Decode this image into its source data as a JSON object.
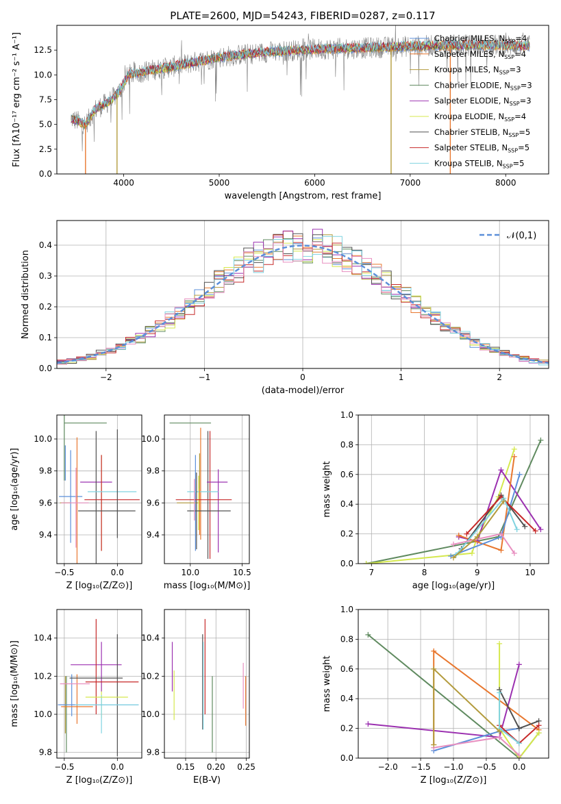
{
  "figure": {
    "title": "PLATE=2600, MJD=54243, FIBERID=0287, z=0.117"
  },
  "colors": {
    "Chabrier MILES": "#5b8fd9",
    "Salpeter MILES": "#e8772e",
    "Kroupa MILES": "#b39b3d",
    "Chabrier ELODIE": "#5f8a5f",
    "Salpeter ELODIE": "#9b30b0",
    "Kroupa ELODIE": "#d5e84d",
    "Chabrier STELIB": "#505050",
    "Salpeter STELIB": "#c62828",
    "Kroupa STELIB": "#7fd3e0",
    "pink": "#e88fc0",
    "data": "#7f7f7f"
  },
  "chart_data": [
    {
      "id": "spectrum",
      "type": "line",
      "xlabel": "wavelength [Angstrom, rest frame]",
      "ylabel": "Flux [fλ10⁻¹⁷ erg cm⁻² s⁻¹ A⁻¹]",
      "xlim": [
        3300,
        8450
      ],
      "ylim": [
        0,
        15
      ],
      "xticks": [
        4000,
        5000,
        6000,
        7000,
        8000
      ],
      "yticks": [
        0.0,
        2.5,
        5.0,
        7.5,
        10.0,
        12.5
      ],
      "ytick_labels": [
        "0.0",
        "2.5",
        "5.0",
        "7.5",
        "10.0",
        "12.5"
      ],
      "xrange_data": [
        3450,
        8250
      ],
      "continuum_points": [
        [
          3450,
          5.6
        ],
        [
          3600,
          5.0
        ],
        [
          3700,
          6.5
        ],
        [
          3850,
          7.3
        ],
        [
          3950,
          8.3
        ],
        [
          4050,
          10.0
        ],
        [
          4300,
          10.5
        ],
        [
          4500,
          10.8
        ],
        [
          5000,
          11.8
        ],
        [
          5500,
          12.3
        ],
        [
          6000,
          12.6
        ],
        [
          6500,
          12.7
        ],
        [
          7000,
          12.9
        ],
        [
          7500,
          13.0
        ],
        [
          8000,
          13.0
        ],
        [
          8250,
          12.9
        ]
      ],
      "spikes": [
        [
          3600,
          0
        ],
        [
          3930,
          0
        ],
        [
          6800,
          0
        ],
        [
          7420,
          0
        ]
      ],
      "legend": [
        {
          "name": "Chabrier MILES",
          "nssp": "4"
        },
        {
          "name": "Salpeter MILES",
          "nssp": "4"
        },
        {
          "name": "Kroupa MILES",
          "nssp": "3"
        },
        {
          "name": "Chabrier ELODIE",
          "nssp": "3"
        },
        {
          "name": "Salpeter ELODIE",
          "nssp": "3"
        },
        {
          "name": "Kroupa ELODIE",
          "nssp": "4"
        },
        {
          "name": "Chabrier STELIB",
          "nssp": "5"
        },
        {
          "name": "Salpeter STELIB",
          "nssp": "5"
        },
        {
          "name": "Kroupa STELIB",
          "nssp": "5"
        }
      ],
      "legend_suffix_label": "N",
      "legend_suffix_sub": "SSP",
      "legend_placement": "right"
    },
    {
      "id": "residuals",
      "type": "step-histogram",
      "xlabel": "(data-model)/error",
      "ylabel": "Normed distribution",
      "xlim": [
        -2.5,
        2.5
      ],
      "ylim": [
        0,
        0.48
      ],
      "xticks": [
        -2,
        -1,
        0,
        1,
        2
      ],
      "xtick_labels": [
        "−2",
        "−1",
        "0",
        "1",
        "2"
      ],
      "yticks": [
        0.0,
        0.1,
        0.2,
        0.3,
        0.4
      ],
      "ytick_labels": [
        "0.0",
        "0.1",
        "0.2",
        "0.3",
        "0.4"
      ],
      "bin_edges_start": -2.5,
      "bin_width": 0.1,
      "n_bins": 50,
      "reference_label": "𝒩(0,1)",
      "reference_color": "#5b8fd9"
    },
    {
      "id": "age-vs-Z",
      "type": "errorbar",
      "xlabel": "Z [log₁₀(Z/Z⊙)]",
      "ylabel": "age  [log₁₀(age/yr)]",
      "xlim": [
        -0.57,
        0.23
      ],
      "ylim": [
        9.22,
        10.15
      ],
      "xticks": [
        -0.5,
        0.0
      ],
      "xtick_labels": [
        "−0.5",
        "0.0"
      ],
      "yticks": [
        9.4,
        9.6,
        9.8,
        10.0
      ],
      "ytick_labels": [
        "9.4",
        "9.6",
        "9.8",
        "10.0"
      ],
      "points": [
        {
          "x": -0.44,
          "xerr": 0.11,
          "y": 9.64,
          "yerr": 0.29,
          "color": "#5b8fd9"
        },
        {
          "x": -0.38,
          "xerr": 0.0,
          "y": 9.6,
          "yerr": 0.41,
          "color": "#e8772e"
        },
        {
          "x": -0.49,
          "xerr": 0.05,
          "y": 9.6,
          "yerr": 0.0,
          "color": "#b39b3d"
        },
        {
          "x": -0.5,
          "xerr": 0.0,
          "y": 10.1,
          "yerr": 0.36,
          "color": "#5f8a5f"
        },
        {
          "x": -0.2,
          "xerr": 0.15,
          "y": 9.73,
          "yerr": 0.0,
          "color": "#9b30b0"
        },
        {
          "x": -0.15,
          "xerr": 0.0,
          "y": 9.6,
          "yerr": 0.3,
          "color": "#d5e84d"
        },
        {
          "x": -0.2,
          "xerr": 0.0,
          "y": 9.6,
          "yerr": 0.45,
          "color": "#505050"
        },
        {
          "x": -0.15,
          "xerr": 0.0,
          "y": 9.6,
          "yerr": 0.3,
          "color": "#c62828"
        },
        {
          "x": -0.05,
          "xerr": 0.23,
          "y": 9.67,
          "yerr": 0.0,
          "color": "#7fd3e0"
        },
        {
          "x": -0.39,
          "xerr": 0.0,
          "y": 9.57,
          "yerr": 0.25,
          "color": "#e88fc0"
        },
        {
          "x": -0.4,
          "xerr": 0.13,
          "y": 9.6,
          "yerr": 0.0,
          "color": "#e88fc0"
        },
        {
          "x": -0.05,
          "xerr": 0.26,
          "y": 9.62,
          "yerr": 0.0,
          "color": "#c62828"
        },
        {
          "x": 0.0,
          "xerr": 0.0,
          "y": 9.72,
          "yerr": 0.34,
          "color": "#505050"
        },
        {
          "x": -0.1,
          "xerr": 0.27,
          "y": 9.55,
          "yerr": 0.0,
          "color": "#505050"
        },
        {
          "x": -0.49,
          "xerr": 0.0,
          "y": 9.85,
          "yerr": 0.11,
          "color": "#5b8fd9"
        },
        {
          "x": -0.3,
          "xerr": 0.2,
          "y": 10.1,
          "yerr": 0.0,
          "color": "#5f8a5f"
        }
      ]
    },
    {
      "id": "age-vs-mass",
      "type": "errorbar",
      "xlabel": "mass [log₁₀(M/M⊙)]",
      "ylabel": "",
      "xlim": [
        9.75,
        10.57
      ],
      "ylim": [
        9.22,
        10.15
      ],
      "xticks": [
        10.0,
        10.5
      ],
      "xtick_labels": [
        "10.0",
        "10.5"
      ],
      "yticks": [
        9.4,
        9.6,
        9.8,
        10.0
      ],
      "ytick_labels": [
        "9.4",
        "9.6",
        "9.8",
        "10.0"
      ],
      "points": [
        {
          "x": 10.05,
          "xerr": 0.0,
          "y": 9.6,
          "yerr": 0.3,
          "color": "#5b8fd9"
        },
        {
          "x": 10.1,
          "xerr": 0.0,
          "y": 9.72,
          "yerr": 0.35,
          "color": "#e8772e"
        },
        {
          "x": 9.98,
          "xerr": 0.11,
          "y": 9.6,
          "yerr": 0.0,
          "color": "#b39b3d"
        },
        {
          "x": 10.0,
          "xerr": 0.2,
          "y": 10.1,
          "yerr": 0.0,
          "color": "#5f8a5f"
        },
        {
          "x": 10.27,
          "xerr": 0.0,
          "y": 9.55,
          "yerr": 0.26,
          "color": "#9b30b0"
        },
        {
          "x": 10.08,
          "xerr": 0.0,
          "y": 9.6,
          "yerr": 0.17,
          "color": "#d5e84d"
        },
        {
          "x": 10.17,
          "xerr": 0.0,
          "y": 9.65,
          "yerr": 0.4,
          "color": "#505050"
        },
        {
          "x": 10.19,
          "xerr": 0.0,
          "y": 9.65,
          "yerr": 0.4,
          "color": "#c62828"
        },
        {
          "x": 10.12,
          "xerr": 0.15,
          "y": 9.67,
          "yerr": 0.0,
          "color": "#7fd3e0"
        },
        {
          "x": 10.06,
          "xerr": 0.0,
          "y": 9.55,
          "yerr": 0.24,
          "color": "#505050"
        },
        {
          "x": 10.09,
          "xerr": 0.0,
          "y": 9.6,
          "yerr": 0.2,
          "color": "#e8772e"
        },
        {
          "x": 10.13,
          "xerr": 0.27,
          "y": 9.62,
          "yerr": 0.0,
          "color": "#c62828"
        },
        {
          "x": 10.18,
          "xerr": 0.21,
          "y": 9.55,
          "yerr": 0.0,
          "color": "#505050"
        },
        {
          "x": 10.26,
          "xerr": 0.1,
          "y": 9.73,
          "yerr": 0.0,
          "color": "#9b30b0"
        },
        {
          "x": 10.04,
          "xerr": 0.0,
          "y": 9.62,
          "yerr": 0.13,
          "color": "#e88fc0"
        },
        {
          "x": 10.09,
          "xerr": 0.0,
          "y": 9.8,
          "yerr": 0.11,
          "color": "#b39b3d"
        }
      ]
    },
    {
      "id": "weight-vs-age",
      "type": "line",
      "xlabel": "age  [log₁₀(age/yr)]",
      "ylabel": "mass weight",
      "xlim": [
        6.75,
        10.35
      ],
      "ylim": [
        0,
        1
      ],
      "xticks": [
        7,
        8,
        9,
        10
      ],
      "xtick_labels": [
        "7",
        "8",
        "9",
        "10"
      ],
      "yticks": [
        0.0,
        0.2,
        0.4,
        0.6,
        0.8,
        1.0
      ],
      "ytick_labels": [
        "0.0",
        "0.2",
        "0.4",
        "0.6",
        "0.8",
        "1.0"
      ],
      "series": [
        {
          "color": "#5f8a5f",
          "x": [
            6.9,
            9.4,
            10.2
          ],
          "y": [
            0.0,
            0.18,
            0.83
          ]
        },
        {
          "color": "#d5e84d",
          "x": [
            6.9,
            8.9,
            9.0,
            9.4,
            9.7
          ],
          "y": [
            0.0,
            0.07,
            0.18,
            0.45,
            0.77
          ]
        },
        {
          "color": "#9b30b0",
          "x": [
            8.65,
            9.0,
            9.45,
            10.2
          ],
          "y": [
            0.18,
            0.15,
            0.63,
            0.23
          ]
        },
        {
          "color": "#e8772e",
          "x": [
            8.65,
            9.45,
            9.7
          ],
          "y": [
            0.19,
            0.09,
            0.72
          ]
        },
        {
          "color": "#5b8fd9",
          "x": [
            8.5,
            9.45,
            9.8
          ],
          "y": [
            0.05,
            0.18,
            0.6
          ]
        },
        {
          "color": "#505050",
          "x": [
            8.7,
            9.45,
            9.9
          ],
          "y": [
            0.1,
            0.46,
            0.25
          ]
        },
        {
          "color": "#c62828",
          "x": [
            8.8,
            9.45,
            10.1
          ],
          "y": [
            0.2,
            0.45,
            0.22
          ]
        },
        {
          "color": "#7fd3e0",
          "x": [
            8.6,
            9.5,
            9.75
          ],
          "y": [
            0.06,
            0.44,
            0.23
          ]
        },
        {
          "color": "#e88fc0",
          "x": [
            8.55,
            9.45,
            9.7
          ],
          "y": [
            0.13,
            0.2,
            0.07
          ]
        },
        {
          "color": "#b39b3d",
          "x": [
            8.55,
            9.0,
            9.5
          ],
          "y": [
            0.04,
            0.18,
            0.42
          ]
        }
      ]
    },
    {
      "id": "mass-vs-Z",
      "type": "errorbar",
      "xlabel": "Z [log₁₀(Z/Z⊙)]",
      "ylabel": "mass [log₁₀(M/M⊙)]",
      "xlim": [
        -0.57,
        0.23
      ],
      "ylim": [
        9.77,
        10.55
      ],
      "xticks": [
        -0.5,
        0.0
      ],
      "xtick_labels": [
        "−0.5",
        "0.0"
      ],
      "yticks": [
        9.8,
        10.0,
        10.2,
        10.4
      ],
      "ytick_labels": [
        "9.8",
        "10.0",
        "10.2",
        "10.4"
      ],
      "points": [
        {
          "x": -0.43,
          "xerr": 0.0,
          "y": 10.1,
          "yerr": 0.11,
          "color": "#5b8fd9"
        },
        {
          "x": -0.38,
          "xerr": 0.0,
          "y": 10.08,
          "yerr": 0.13,
          "color": "#e8772e"
        },
        {
          "x": -0.49,
          "xerr": 0.0,
          "y": 10.05,
          "yerr": 0.15,
          "color": "#b39b3d"
        },
        {
          "x": -0.48,
          "xerr": 0.0,
          "y": 10.0,
          "yerr": 0.2,
          "color": "#5f8a5f"
        },
        {
          "x": -0.2,
          "xerr": 0.24,
          "y": 10.26,
          "yerr": 0.0,
          "color": "#9b30b0"
        },
        {
          "x": -0.15,
          "xerr": 0.0,
          "y": 10.08,
          "yerr": 0.1,
          "color": "#d5e84d"
        },
        {
          "x": 0.0,
          "xerr": 0.0,
          "y": 10.1,
          "yerr": 0.32,
          "color": "#505050"
        },
        {
          "x": -0.2,
          "xerr": 0.0,
          "y": 10.25,
          "yerr": 0.25,
          "color": "#c62828"
        },
        {
          "x": -0.15,
          "xerr": 0.0,
          "y": 10.0,
          "yerr": 0.1,
          "color": "#7fd3e0"
        },
        {
          "x": -0.4,
          "xerr": 0.14,
          "y": 10.16,
          "yerr": 0.0,
          "color": "#e88fc0"
        },
        {
          "x": -0.15,
          "xerr": 0.0,
          "y": 10.25,
          "yerr": 0.13,
          "color": "#9b30b0"
        },
        {
          "x": -0.1,
          "xerr": 0.2,
          "y": 10.09,
          "yerr": 0.0,
          "color": "#d5e84d"
        },
        {
          "x": -0.05,
          "xerr": 0.25,
          "y": 10.17,
          "yerr": 0.0,
          "color": "#c62828"
        },
        {
          "x": -0.2,
          "xerr": 0.25,
          "y": 10.19,
          "yerr": 0.0,
          "color": "#505050"
        },
        {
          "x": -0.18,
          "xerr": 0.38,
          "y": 10.05,
          "yerr": 0.0,
          "color": "#5b8fd9"
        },
        {
          "x": -0.38,
          "xerr": 0.15,
          "y": 10.04,
          "yerr": 0.0,
          "color": "#e8772e"
        },
        {
          "x": -0.1,
          "xerr": 0.3,
          "y": 10.05,
          "yerr": 0.0,
          "color": "#7fd3e0"
        }
      ]
    },
    {
      "id": "mass-vs-EBV",
      "type": "errorbar",
      "xlabel": "E(B-V)",
      "ylabel": "",
      "xlim": [
        0.115,
        0.255
      ],
      "ylim": [
        9.77,
        10.55
      ],
      "xticks": [
        0.15,
        0.2,
        0.25
      ],
      "xtick_labels": [
        "0.15",
        "0.20",
        "0.25"
      ],
      "yticks": [
        9.8,
        10.0,
        10.2,
        10.4
      ],
      "ytick_labels": [
        "9.8",
        "10.0",
        "10.2",
        "10.4"
      ],
      "points": [
        {
          "x": 0.128,
          "xerr": 0.0,
          "y": 10.25,
          "yerr": 0.13,
          "color": "#9b30b0"
        },
        {
          "x": 0.131,
          "xerr": 0.0,
          "y": 10.1,
          "yerr": 0.13,
          "color": "#d5e84d"
        },
        {
          "x": 0.178,
          "xerr": 0.0,
          "y": 10.17,
          "yerr": 0.25,
          "color": "#505050"
        },
        {
          "x": 0.179,
          "xerr": 0.0,
          "y": 10.15,
          "yerr": 0.23,
          "color": "#7fd3e0"
        },
        {
          "x": 0.182,
          "xerr": 0.0,
          "y": 10.25,
          "yerr": 0.25,
          "color": "#c62828"
        },
        {
          "x": 0.194,
          "xerr": 0.0,
          "y": 10.0,
          "yerr": 0.2,
          "color": "#5f8a5f"
        },
        {
          "x": 0.245,
          "xerr": 0.0,
          "y": 10.15,
          "yerr": 0.12,
          "color": "#e88fc0"
        },
        {
          "x": 0.249,
          "xerr": 0.0,
          "y": 10.07,
          "yerr": 0.13,
          "color": "#e8772e"
        }
      ]
    },
    {
      "id": "weight-vs-Z",
      "type": "line",
      "xlabel": "Z [log₁₀(Z/Z⊙)]",
      "ylabel": "mass weight",
      "xlim": [
        -2.45,
        0.45
      ],
      "ylim": [
        0,
        1
      ],
      "xticks": [
        -2.0,
        -1.5,
        -1.0,
        -0.5,
        0.0
      ],
      "xtick_labels": [
        "−2.0",
        "−1.5",
        "−1.0",
        "−0.5",
        "0.0"
      ],
      "yticks": [
        0.0,
        0.2,
        0.4,
        0.6,
        0.8,
        1.0
      ],
      "ytick_labels": [
        "0.0",
        "0.2",
        "0.4",
        "0.6",
        "0.8",
        "1.0"
      ],
      "series": [
        {
          "color": "#5f8a5f",
          "x": [
            -2.3,
            0.0,
            0.3
          ],
          "y": [
            0.83,
            0.0,
            0.17
          ]
        },
        {
          "color": "#9b30b0",
          "x": [
            -2.3,
            -0.3,
            0.0
          ],
          "y": [
            0.23,
            0.14,
            0.63
          ]
        },
        {
          "color": "#e8772e",
          "x": [
            -1.3,
            -1.3,
            0.3
          ],
          "y": [
            0.09,
            0.72,
            0.19
          ]
        },
        {
          "color": "#5b8fd9",
          "x": [
            -1.3,
            -0.3,
            0.0
          ],
          "y": [
            0.05,
            0.18,
            0.2
          ]
        },
        {
          "color": "#d5e84d",
          "x": [
            -0.3,
            -0.3,
            0.0,
            0.3
          ],
          "y": [
            0.77,
            0.2,
            0.0,
            0.17
          ]
        },
        {
          "color": "#505050",
          "x": [
            -0.3,
            0.0,
            0.3
          ],
          "y": [
            0.46,
            0.2,
            0.25
          ]
        },
        {
          "color": "#c62828",
          "x": [
            -0.3,
            0.0,
            0.3
          ],
          "y": [
            0.22,
            0.1,
            0.22
          ]
        },
        {
          "color": "#7fd3e0",
          "x": [
            -0.3,
            -0.3,
            0.0
          ],
          "y": [
            0.44,
            0.2,
            0.1
          ]
        },
        {
          "color": "#e88fc0",
          "x": [
            -1.3,
            -0.3,
            0.0
          ],
          "y": [
            0.07,
            0.14,
            0.02
          ]
        },
        {
          "color": "#b39b3d",
          "x": [
            -1.3,
            -1.3,
            -0.3
          ],
          "y": [
            0.09,
            0.6,
            0.18
          ]
        }
      ]
    }
  ]
}
